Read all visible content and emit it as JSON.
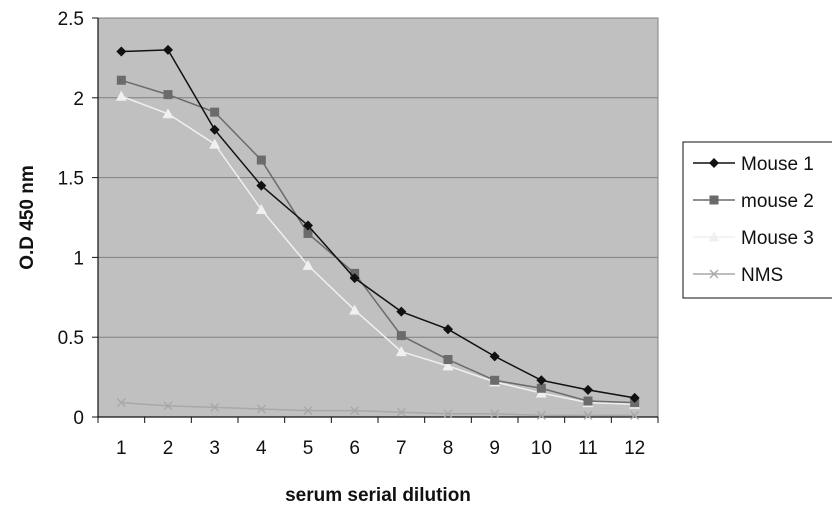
{
  "chart_data": {
    "type": "line",
    "title": "",
    "xlabel": "serum serial dilution",
    "ylabel": "O.D 450 nm",
    "categories": [
      "1",
      "2",
      "3",
      "4",
      "5",
      "6",
      "7",
      "8",
      "9",
      "10",
      "11",
      "12"
    ],
    "ylim": [
      0,
      2.5
    ],
    "yticks": [
      "0",
      "0.5",
      "1",
      "1.5",
      "2",
      "2.5"
    ],
    "grid": true,
    "legend_position": "right",
    "series": [
      {
        "name": "Mouse 1",
        "marker": "diamond",
        "color": "#111111",
        "marker_color": "#111111",
        "values": [
          2.29,
          2.3,
          1.8,
          1.45,
          1.2,
          0.87,
          0.66,
          0.55,
          0.38,
          0.23,
          0.17,
          0.12
        ]
      },
      {
        "name": "mouse 2",
        "marker": "square",
        "color": "#6b6b6b",
        "marker_color": "#6b6b6b",
        "values": [
          2.11,
          2.02,
          1.91,
          1.61,
          1.15,
          0.9,
          0.51,
          0.36,
          0.23,
          0.18,
          0.1,
          0.09
        ]
      },
      {
        "name": "Mouse 3",
        "marker": "triangle",
        "color": "#f0f0f0",
        "marker_color": "#f0f0f0",
        "values": [
          2.01,
          1.9,
          1.71,
          1.3,
          0.95,
          0.67,
          0.41,
          0.32,
          0.22,
          0.15,
          0.09,
          0.08
        ]
      },
      {
        "name": "NMS",
        "marker": "x",
        "color": "#a8a8a8",
        "marker_color": "#a8a8a8",
        "values": [
          0.09,
          0.07,
          0.06,
          0.05,
          0.04,
          0.04,
          0.03,
          0.02,
          0.02,
          0.01,
          0.01,
          0.01
        ]
      }
    ]
  },
  "colors": {
    "plot_background": "#c0c0c0",
    "gridline": "#808080"
  }
}
